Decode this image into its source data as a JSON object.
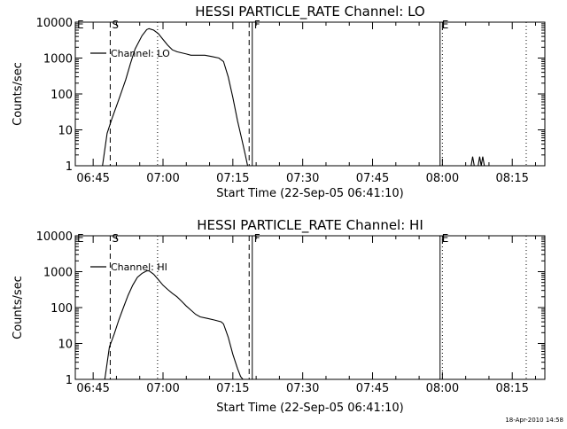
{
  "timestamp": "18-Apr-2010 14:58",
  "chart_data": [
    {
      "type": "line",
      "title": "HESSI PARTICLE_RATE Channel: LO",
      "xlabel": "Start Time (22-Sep-05 06:41:10)",
      "ylabel": "Counts/sec",
      "yscale": "log",
      "ylim": [
        1,
        10000
      ],
      "xlim": [
        "06:41:10",
        "08:22:00"
      ],
      "x_ticks": [
        "06:45",
        "07:00",
        "07:15",
        "07:30",
        "07:45",
        "08:00",
        "08:15"
      ],
      "y_ticks": [
        "1",
        "10",
        "100",
        "1000",
        "10000"
      ],
      "legend": {
        "position": "top-left",
        "entries": [
          "Channel: LO"
        ]
      },
      "grid": false,
      "markers": [
        {
          "label": "E",
          "time": "06:41:10",
          "style": "none"
        },
        {
          "label": "S",
          "time": "06:48:40",
          "style": "dashed"
        },
        {
          "label": "",
          "time": "06:58:50",
          "style": "dotted"
        },
        {
          "label": "",
          "time": "07:18:30",
          "style": "dashed"
        },
        {
          "label": "F",
          "time": "07:19:10",
          "style": "solid"
        },
        {
          "label": "E",
          "time": "07:59:30",
          "style": "solid"
        },
        {
          "label": "",
          "time": "08:00:00",
          "style": "dotted"
        },
        {
          "label": "",
          "time": "08:18:00",
          "style": "dotted"
        }
      ],
      "series": [
        {
          "name": "Channel: LO",
          "segments": [
            {
              "x": [
                "06:47:00",
                "06:48:00",
                "06:49:00",
                "06:50:30",
                "06:52:00",
                "06:53:00",
                "06:54:00",
                "06:55:30",
                "06:56:30",
                "06:57:00",
                "06:58:00",
                "06:59:00",
                "07:00:00",
                "07:01:00",
                "07:02:00",
                "07:03:00",
                "07:04:00",
                "07:05:00",
                "07:06:00",
                "07:07:30",
                "07:09:00",
                "07:10:30",
                "07:12:00",
                "07:13:00",
                "07:14:00",
                "07:15:00",
                "07:16:00",
                "07:17:00",
                "07:17:40",
                "07:18:10"
              ],
              "y": [
                1,
                8,
                20,
                70,
                250,
                700,
                1800,
                4200,
                6200,
                6600,
                6000,
                4800,
                3300,
                2300,
                1700,
                1500,
                1400,
                1300,
                1200,
                1200,
                1200,
                1100,
                1000,
                800,
                300,
                80,
                18,
                5,
                2,
                1
              ]
            },
            {
              "x": [
                "08:06:10",
                "08:06:30",
                "08:06:50",
                "08:07:40",
                "08:08:00",
                "08:08:20",
                "08:08:40",
                "08:09:00"
              ],
              "y": [
                1,
                1.8,
                1,
                1,
                1.8,
                1,
                1.8,
                1
              ]
            }
          ]
        }
      ]
    },
    {
      "type": "line",
      "title": "HESSI PARTICLE_RATE Channel: HI",
      "xlabel": "Start Time (22-Sep-05 06:41:10)",
      "ylabel": "Counts/sec",
      "yscale": "log",
      "ylim": [
        1,
        10000
      ],
      "xlim": [
        "06:41:10",
        "08:22:00"
      ],
      "x_ticks": [
        "06:45",
        "07:00",
        "07:15",
        "07:30",
        "07:45",
        "08:00",
        "08:15"
      ],
      "y_ticks": [
        "1",
        "10",
        "100",
        "1000",
        "10000"
      ],
      "legend": {
        "position": "top-left",
        "entries": [
          "Channel: HI"
        ]
      },
      "grid": false,
      "markers": [
        {
          "label": "E",
          "time": "06:41:10",
          "style": "none"
        },
        {
          "label": "S",
          "time": "06:48:40",
          "style": "dashed"
        },
        {
          "label": "",
          "time": "06:58:50",
          "style": "dotted"
        },
        {
          "label": "",
          "time": "07:18:30",
          "style": "dashed"
        },
        {
          "label": "F",
          "time": "07:19:10",
          "style": "solid"
        },
        {
          "label": "E",
          "time": "07:59:30",
          "style": "solid"
        },
        {
          "label": "",
          "time": "08:00:00",
          "style": "dotted"
        },
        {
          "label": "",
          "time": "08:18:00",
          "style": "dotted"
        }
      ],
      "series": [
        {
          "name": "Channel: HI",
          "segments": [
            {
              "x": [
                "06:47:30",
                "06:48:30",
                "06:49:30",
                "06:50:30",
                "06:51:30",
                "06:52:30",
                "06:53:30",
                "06:54:30",
                "06:55:30",
                "06:56:30",
                "06:57:00",
                "06:58:00",
                "06:59:00",
                "07:00:00",
                "07:01:00",
                "07:02:00",
                "07:03:00",
                "07:04:00",
                "07:05:00",
                "07:06:00",
                "07:07:00",
                "07:08:00",
                "07:09:30",
                "07:11:00",
                "07:12:30",
                "07:13:00",
                "07:14:00",
                "07:15:00",
                "07:16:00",
                "07:16:40",
                "07:17:10"
              ],
              "y": [
                1,
                8,
                18,
                45,
                100,
                220,
                420,
                700,
                900,
                1050,
                1050,
                850,
                600,
                420,
                320,
                250,
                200,
                150,
                110,
                85,
                65,
                55,
                50,
                45,
                40,
                35,
                15,
                5,
                2,
                1.2,
                1
              ]
            }
          ]
        }
      ]
    }
  ]
}
